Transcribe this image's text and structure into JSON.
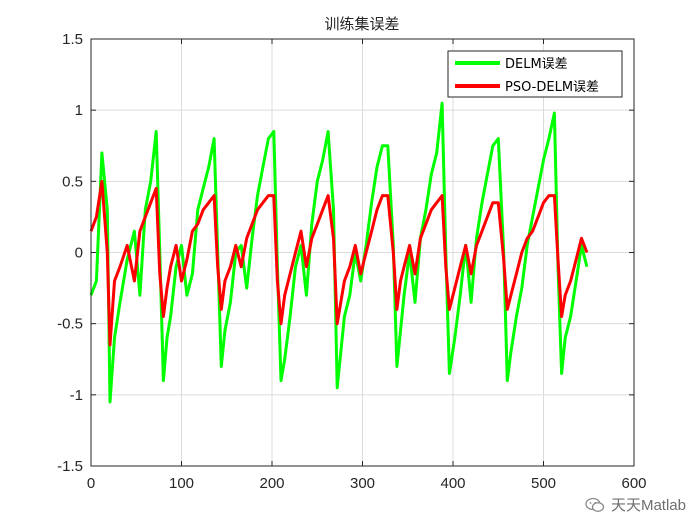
{
  "chart_data": {
    "type": "line",
    "title": "训练集误差",
    "xlabel": "",
    "ylabel": "",
    "xlim": [
      0,
      600
    ],
    "ylim": [
      -1.5,
      1.5
    ],
    "xticks": [
      0,
      100,
      200,
      300,
      400,
      500,
      600
    ],
    "yticks": [
      -1.5,
      -1,
      -0.5,
      0,
      0.5,
      1,
      1.5
    ],
    "xtick_labels": [
      "0",
      "100",
      "200",
      "300",
      "400",
      "500",
      "600"
    ],
    "ytick_labels": [
      "-1.5",
      "-1",
      "-0.5",
      "0",
      "0.5",
      "1",
      "1.5"
    ],
    "grid": true,
    "legend_position": "top-right",
    "series": [
      {
        "name": "DELM误差",
        "color": "#00ff00",
        "x": [
          0,
          6,
          12,
          18,
          21,
          26,
          32,
          40,
          48,
          54,
          60,
          66,
          72,
          76,
          80,
          84,
          88,
          94,
          100,
          106,
          112,
          118,
          124,
          130,
          136,
          140,
          144,
          148,
          154,
          160,
          166,
          172,
          178,
          184,
          190,
          196,
          202,
          206,
          210,
          214,
          220,
          226,
          232,
          238,
          244,
          250,
          256,
          262,
          268,
          272,
          276,
          280,
          286,
          292,
          298,
          304,
          310,
          316,
          322,
          328,
          334,
          338,
          342,
          346,
          352,
          358,
          364,
          370,
          376,
          382,
          388,
          392,
          396,
          402,
          408,
          414,
          420,
          426,
          432,
          438,
          444,
          450,
          456,
          460,
          464,
          470,
          476,
          482,
          488,
          494,
          500,
          506,
          512,
          516,
          520,
          524,
          530,
          536,
          542,
          548
        ],
        "y": [
          -0.3,
          -0.2,
          0.7,
          0.3,
          -1.05,
          -0.6,
          -0.35,
          -0.05,
          0.15,
          -0.3,
          0.3,
          0.5,
          0.85,
          0.0,
          -0.9,
          -0.6,
          -0.45,
          -0.1,
          0.05,
          -0.3,
          -0.15,
          0.3,
          0.45,
          0.6,
          0.8,
          0.0,
          -0.8,
          -0.55,
          -0.35,
          0.0,
          0.05,
          -0.25,
          0.1,
          0.4,
          0.6,
          0.8,
          0.85,
          -0.1,
          -0.9,
          -0.75,
          -0.45,
          -0.1,
          0.05,
          -0.3,
          0.2,
          0.5,
          0.65,
          0.85,
          0.3,
          -0.95,
          -0.7,
          -0.45,
          -0.3,
          0.0,
          -0.2,
          0.05,
          0.35,
          0.6,
          0.75,
          0.75,
          0.05,
          -0.8,
          -0.55,
          -0.3,
          0.0,
          -0.35,
          0.1,
          0.3,
          0.55,
          0.7,
          1.05,
          0.0,
          -0.85,
          -0.6,
          -0.3,
          0.05,
          -0.35,
          0.1,
          0.35,
          0.55,
          0.75,
          0.8,
          0.0,
          -0.9,
          -0.7,
          -0.45,
          -0.25,
          0.05,
          0.25,
          0.45,
          0.65,
          0.8,
          0.98,
          -0.1,
          -0.85,
          -0.6,
          -0.45,
          -0.2,
          0.05,
          -0.1
        ]
      },
      {
        "name": "PSO-DELM误差",
        "color": "#ff0000",
        "x": [
          0,
          6,
          12,
          18,
          21,
          26,
          32,
          40,
          48,
          54,
          60,
          66,
          72,
          76,
          80,
          84,
          88,
          94,
          100,
          106,
          112,
          118,
          124,
          130,
          136,
          140,
          144,
          148,
          154,
          160,
          166,
          172,
          178,
          184,
          190,
          196,
          202,
          206,
          210,
          214,
          220,
          226,
          232,
          238,
          244,
          250,
          256,
          262,
          268,
          272,
          276,
          280,
          286,
          292,
          298,
          304,
          310,
          316,
          322,
          328,
          334,
          338,
          342,
          346,
          352,
          358,
          364,
          370,
          376,
          382,
          388,
          392,
          396,
          402,
          408,
          414,
          420,
          426,
          432,
          438,
          444,
          450,
          456,
          460,
          464,
          470,
          476,
          482,
          488,
          494,
          500,
          506,
          512,
          516,
          520,
          524,
          530,
          536,
          542,
          548
        ],
        "y": [
          0.15,
          0.25,
          0.5,
          0.0,
          -0.65,
          -0.2,
          -0.1,
          0.05,
          -0.2,
          0.15,
          0.25,
          0.35,
          0.45,
          -0.15,
          -0.45,
          -0.25,
          -0.1,
          0.05,
          -0.2,
          -0.05,
          0.15,
          0.2,
          0.3,
          0.35,
          0.4,
          -0.1,
          -0.4,
          -0.2,
          -0.1,
          0.05,
          -0.1,
          0.1,
          0.2,
          0.3,
          0.35,
          0.4,
          0.4,
          -0.2,
          -0.5,
          -0.3,
          -0.15,
          0.0,
          0.15,
          -0.1,
          0.1,
          0.2,
          0.3,
          0.4,
          0.1,
          -0.5,
          -0.35,
          -0.2,
          -0.1,
          0.05,
          -0.15,
          0.0,
          0.15,
          0.3,
          0.4,
          0.4,
          0.0,
          -0.4,
          -0.2,
          -0.1,
          0.05,
          -0.15,
          0.1,
          0.2,
          0.3,
          0.35,
          0.4,
          -0.1,
          -0.4,
          -0.25,
          -0.1,
          0.05,
          -0.15,
          0.05,
          0.15,
          0.25,
          0.35,
          0.35,
          -0.05,
          -0.4,
          -0.3,
          -0.15,
          0.0,
          0.1,
          0.15,
          0.25,
          0.35,
          0.4,
          0.4,
          -0.05,
          -0.45,
          -0.3,
          -0.2,
          -0.05,
          0.1,
          0.0
        ]
      }
    ]
  },
  "watermark": {
    "text": "天天Matlab",
    "icon": "wechat-icon"
  }
}
